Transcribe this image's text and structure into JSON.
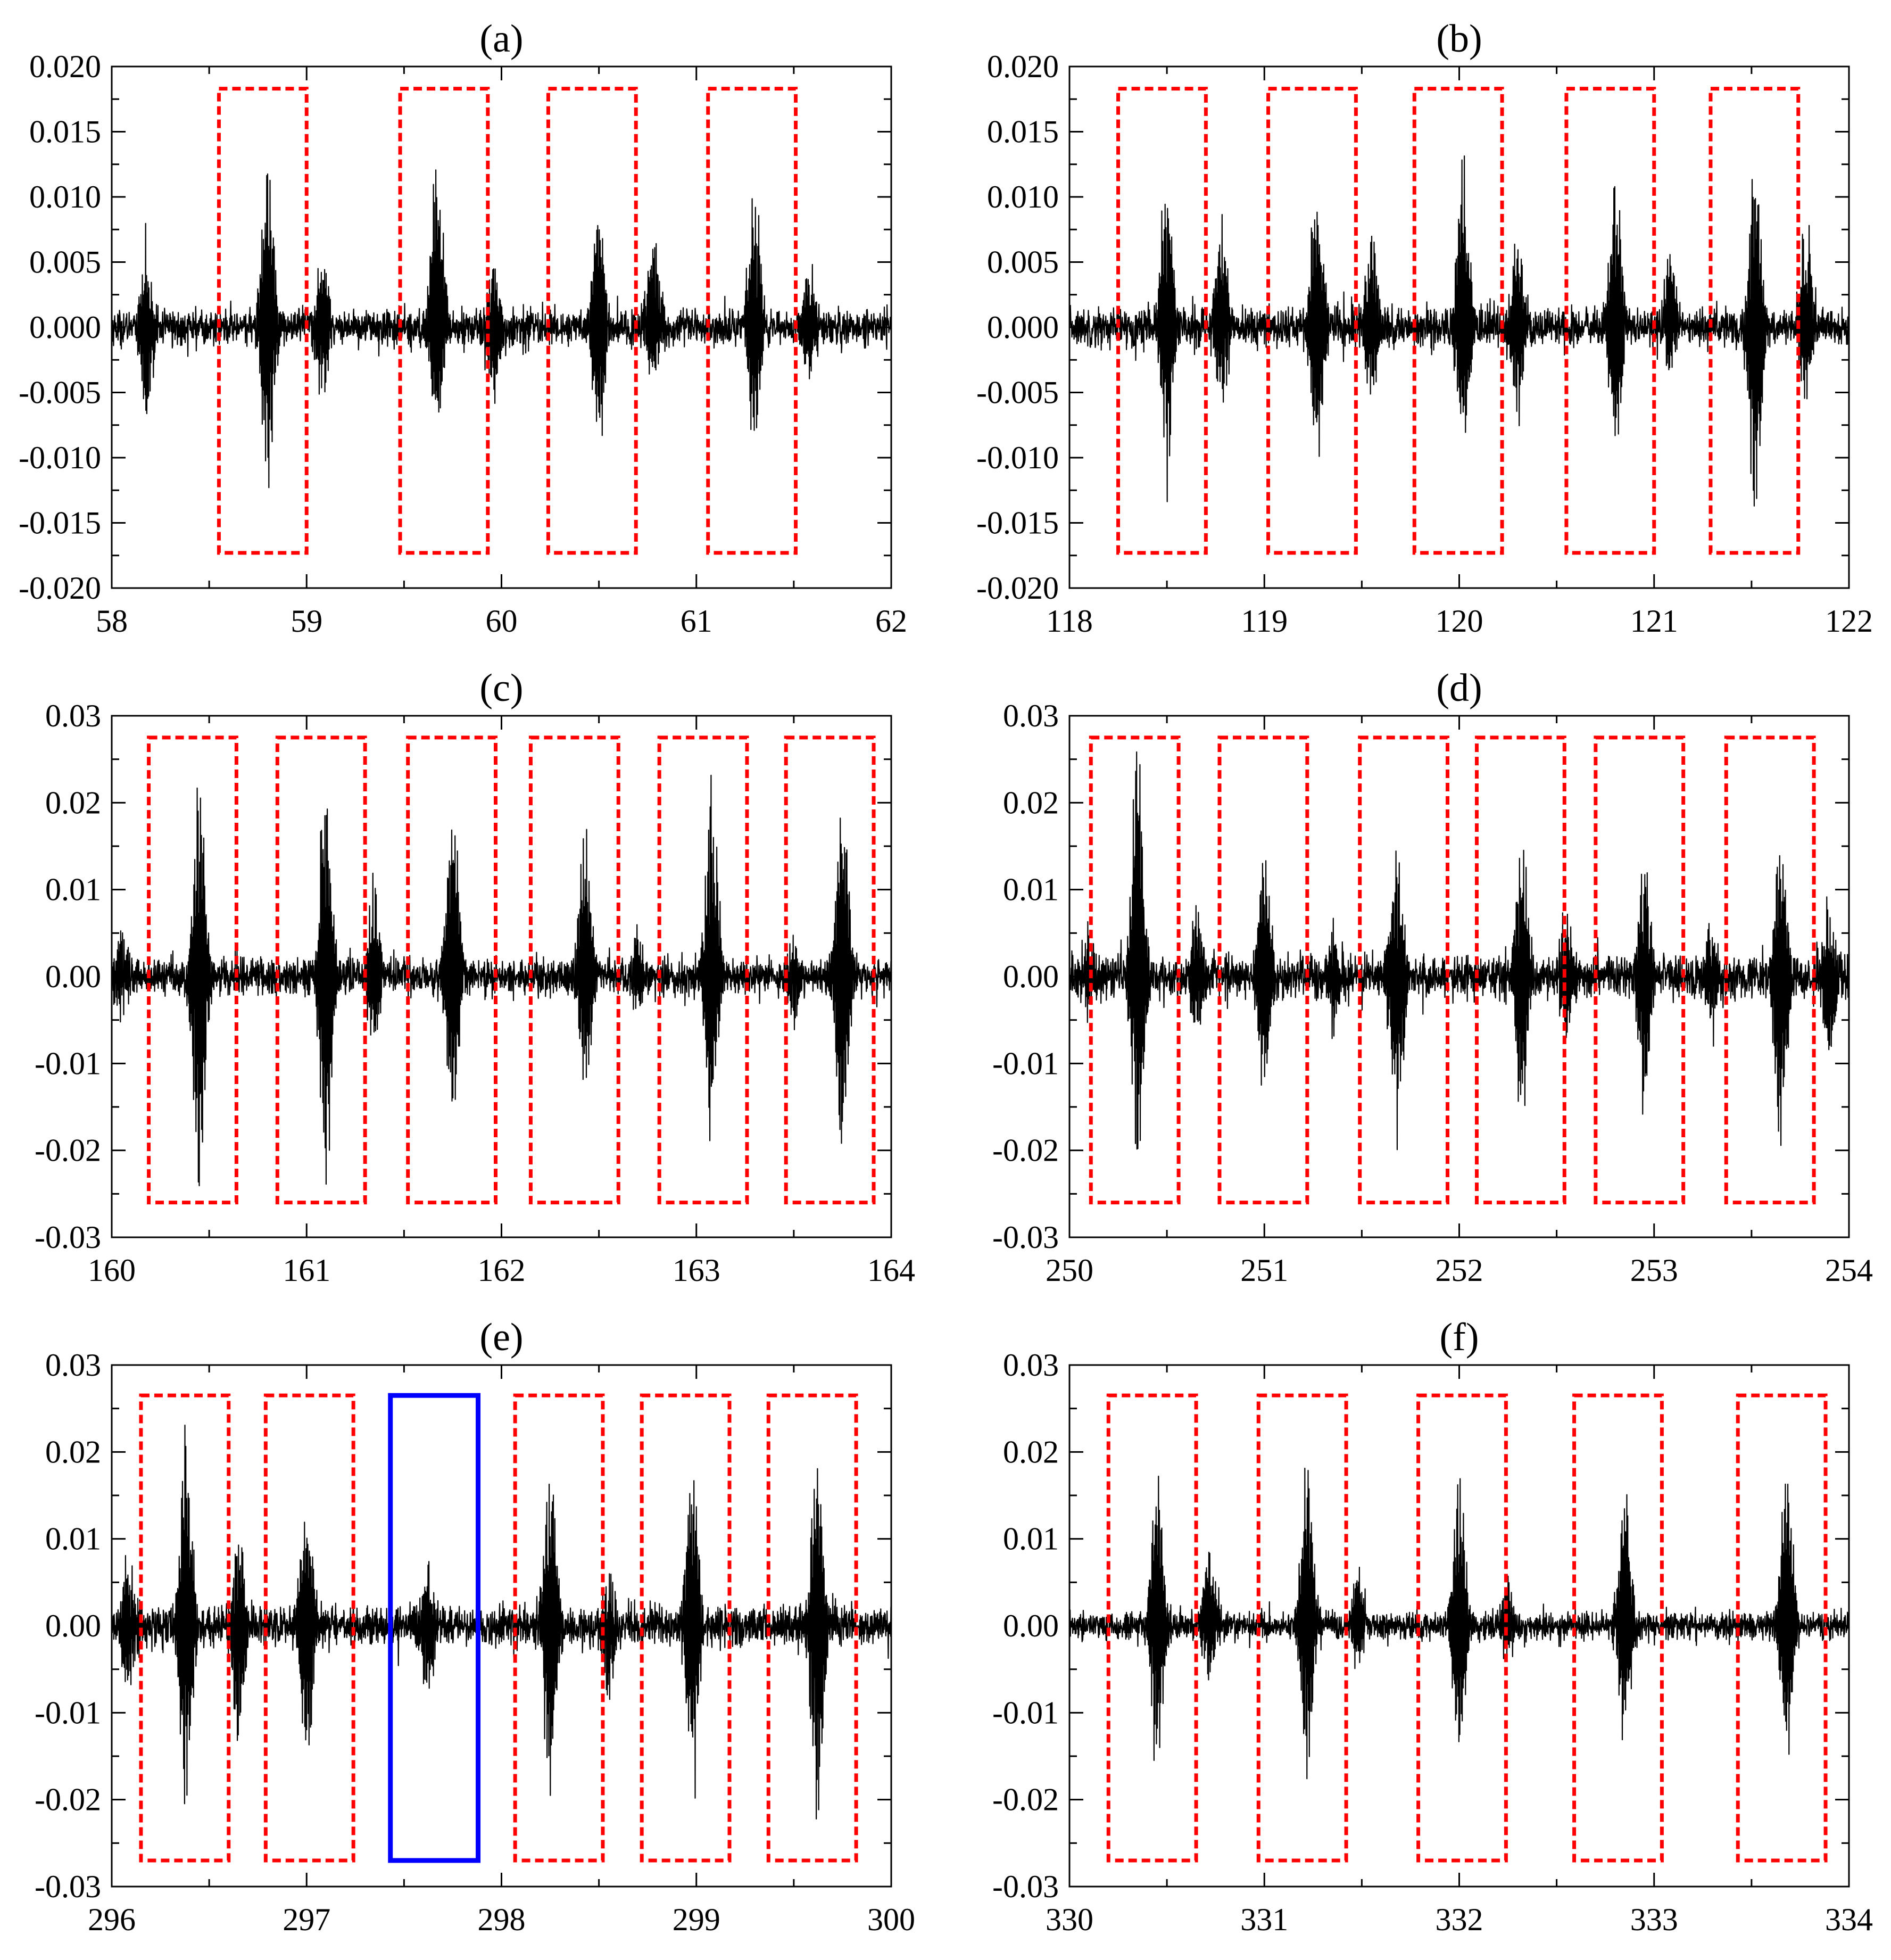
{
  "colors": {
    "signal": "#000000",
    "highlight_box": "#ff0000",
    "anomaly_box": "#0000ff",
    "axes": "#000000",
    "background": "#ffffff"
  },
  "chart_data": [
    {
      "type": "line",
      "title": "(a)",
      "xlabel": "",
      "ylabel": "",
      "xlim": [
        58,
        62
      ],
      "ylim": [
        -0.02,
        0.02
      ],
      "x_ticks": [
        58,
        59,
        60,
        61,
        62
      ],
      "x_tick_labels": [
        "58",
        "59",
        "60",
        "61",
        "62"
      ],
      "y_ticks": [
        -0.02,
        -0.015,
        -0.01,
        -0.005,
        0.0,
        0.005,
        0.01,
        0.015,
        0.02
      ],
      "y_tick_labels": [
        "-0.020",
        "-0.015",
        "-0.010",
        "-0.005",
        "0.000",
        "0.005",
        "0.010",
        "0.015",
        "0.020"
      ],
      "grid": false,
      "noise_amplitude": 0.0012,
      "bursts": [
        {
          "t": 58.18,
          "peak": 0.0065,
          "trough": -0.0082
        },
        {
          "t": 58.8,
          "peak": 0.0143,
          "trough": -0.0127
        },
        {
          "t": 59.08,
          "peak": 0.0063,
          "trough": -0.006
        },
        {
          "t": 59.67,
          "peak": 0.0153,
          "trough": -0.0092
        },
        {
          "t": 59.96,
          "peak": 0.0055,
          "trough": -0.007
        },
        {
          "t": 60.5,
          "peak": 0.0114,
          "trough": -0.0107
        },
        {
          "t": 60.78,
          "peak": 0.0083,
          "trough": -0.0048
        },
        {
          "t": 61.3,
          "peak": 0.0125,
          "trough": -0.0097
        },
        {
          "t": 61.58,
          "peak": 0.0055,
          "trough": -0.004
        }
      ],
      "highlight_regions": [
        {
          "x0": 58.55,
          "x1": 59.0,
          "y0": -0.0173,
          "y1": 0.0183,
          "color": "red",
          "style": "dashed"
        },
        {
          "x0": 59.48,
          "x1": 59.93,
          "y0": -0.0173,
          "y1": 0.0183,
          "color": "red",
          "style": "dashed"
        },
        {
          "x0": 60.24,
          "x1": 60.69,
          "y0": -0.0173,
          "y1": 0.0183,
          "color": "red",
          "style": "dashed"
        },
        {
          "x0": 61.06,
          "x1": 61.51,
          "y0": -0.0173,
          "y1": 0.0183,
          "color": "red",
          "style": "dashed"
        }
      ]
    },
    {
      "type": "line",
      "title": "(b)",
      "xlabel": "",
      "ylabel": "",
      "xlim": [
        118,
        122
      ],
      "ylim": [
        -0.02,
        0.02
      ],
      "x_ticks": [
        118,
        119,
        120,
        121,
        122
      ],
      "x_tick_labels": [
        "118",
        "119",
        "120",
        "121",
        "122"
      ],
      "y_ticks": [
        -0.02,
        -0.015,
        -0.01,
        -0.005,
        0.0,
        0.005,
        0.01,
        0.015,
        0.02
      ],
      "y_tick_labels": [
        "-0.020",
        "-0.015",
        "-0.010",
        "-0.005",
        "0.000",
        "0.005",
        "0.010",
        "0.015",
        "0.020"
      ],
      "grid": false,
      "noise_amplitude": 0.0013,
      "bursts": [
        {
          "t": 118.5,
          "peak": 0.0128,
          "trough": -0.0117
        },
        {
          "t": 118.78,
          "peak": 0.0092,
          "trough": -0.006
        },
        {
          "t": 119.27,
          "peak": 0.0118,
          "trough": -0.0111
        },
        {
          "t": 119.55,
          "peak": 0.0082,
          "trough": -0.006
        },
        {
          "t": 120.02,
          "peak": 0.0137,
          "trough": -0.0108
        },
        {
          "t": 120.3,
          "peak": 0.0075,
          "trough": -0.0068
        },
        {
          "t": 120.8,
          "peak": 0.0135,
          "trough": -0.0108
        },
        {
          "t": 121.08,
          "peak": 0.0065,
          "trough": -0.004
        },
        {
          "t": 121.52,
          "peak": 0.0138,
          "trough": -0.016
        },
        {
          "t": 121.78,
          "peak": 0.0085,
          "trough": -0.0055
        }
      ],
      "highlight_regions": [
        {
          "x0": 118.25,
          "x1": 118.7,
          "y0": -0.0173,
          "y1": 0.0183,
          "color": "red",
          "style": "dashed"
        },
        {
          "x0": 119.02,
          "x1": 119.47,
          "y0": -0.0173,
          "y1": 0.0183,
          "color": "red",
          "style": "dashed"
        },
        {
          "x0": 119.77,
          "x1": 120.22,
          "y0": -0.0173,
          "y1": 0.0183,
          "color": "red",
          "style": "dashed"
        },
        {
          "x0": 120.55,
          "x1": 121.0,
          "y0": -0.0173,
          "y1": 0.0183,
          "color": "red",
          "style": "dashed"
        },
        {
          "x0": 121.29,
          "x1": 121.74,
          "y0": -0.0173,
          "y1": 0.0183,
          "color": "red",
          "style": "dashed"
        }
      ]
    },
    {
      "type": "line",
      "title": "(c)",
      "xlabel": "",
      "ylabel": "",
      "xlim": [
        160,
        164
      ],
      "ylim": [
        -0.03,
        0.03
      ],
      "x_ticks": [
        160,
        161,
        162,
        163,
        164
      ],
      "x_tick_labels": [
        "160",
        "161",
        "162",
        "163",
        "164"
      ],
      "y_ticks": [
        -0.03,
        -0.02,
        -0.01,
        0.0,
        0.01,
        0.02,
        0.03
      ],
      "y_tick_labels": [
        "-0.03",
        "-0.02",
        "-0.01",
        "0.00",
        "0.01",
        "0.02",
        "0.03"
      ],
      "grid": false,
      "noise_amplitude": 0.0018,
      "bursts": [
        {
          "t": 160.05,
          "peak": 0.006,
          "trough": -0.005
        },
        {
          "t": 160.45,
          "peak": 0.0245,
          "trough": -0.028
        },
        {
          "t": 161.1,
          "peak": 0.025,
          "trough": -0.0255
        },
        {
          "t": 161.35,
          "peak": 0.0115,
          "trough": -0.0085
        },
        {
          "t": 161.75,
          "peak": 0.023,
          "trough": -0.0195
        },
        {
          "t": 162.43,
          "peak": 0.0185,
          "trough": -0.0155
        },
        {
          "t": 162.7,
          "peak": 0.006,
          "trough": -0.004
        },
        {
          "t": 163.08,
          "peak": 0.024,
          "trough": -0.02
        },
        {
          "t": 163.5,
          "peak": 0.004,
          "trough": -0.006
        },
        {
          "t": 163.75,
          "peak": 0.022,
          "trough": -0.0225
        }
      ],
      "highlight_regions": [
        {
          "x0": 160.19,
          "x1": 160.64,
          "y0": -0.026,
          "y1": 0.0275,
          "color": "red",
          "style": "dashed"
        },
        {
          "x0": 160.85,
          "x1": 161.3,
          "y0": -0.026,
          "y1": 0.0275,
          "color": "red",
          "style": "dashed"
        },
        {
          "x0": 161.52,
          "x1": 161.97,
          "y0": -0.026,
          "y1": 0.0275,
          "color": "red",
          "style": "dashed"
        },
        {
          "x0": 162.15,
          "x1": 162.6,
          "y0": -0.026,
          "y1": 0.0275,
          "color": "red",
          "style": "dashed"
        },
        {
          "x0": 162.81,
          "x1": 163.26,
          "y0": -0.026,
          "y1": 0.0275,
          "color": "red",
          "style": "dashed"
        },
        {
          "x0": 163.46,
          "x1": 163.91,
          "y0": -0.026,
          "y1": 0.0275,
          "color": "red",
          "style": "dashed"
        }
      ]
    },
    {
      "type": "line",
      "title": "(d)",
      "xlabel": "",
      "ylabel": "",
      "xlim": [
        250,
        254
      ],
      "ylim": [
        -0.03,
        0.03
      ],
      "x_ticks": [
        250,
        251,
        252,
        253,
        254
      ],
      "x_tick_labels": [
        "250",
        "251",
        "252",
        "253",
        "254"
      ],
      "y_ticks": [
        -0.03,
        -0.02,
        -0.01,
        0.0,
        0.01,
        0.02,
        0.03
      ],
      "y_tick_labels": [
        "-0.03",
        "-0.02",
        "-0.01",
        "0.00",
        "0.01",
        "0.02",
        "0.03"
      ],
      "grid": false,
      "noise_amplitude": 0.0022,
      "bursts": [
        {
          "t": 250.1,
          "peak": 0.005,
          "trough": -0.004
        },
        {
          "t": 250.35,
          "peak": 0.029,
          "trough": -0.025
        },
        {
          "t": 250.65,
          "peak": 0.008,
          "trough": -0.007
        },
        {
          "t": 251.0,
          "peak": 0.0165,
          "trough": -0.0155
        },
        {
          "t": 251.35,
          "peak": 0.006,
          "trough": -0.006
        },
        {
          "t": 251.68,
          "peak": 0.0145,
          "trough": -0.0205
        },
        {
          "t": 252.32,
          "peak": 0.017,
          "trough": -0.019
        },
        {
          "t": 252.55,
          "peak": 0.0075,
          "trough": -0.007
        },
        {
          "t": 252.95,
          "peak": 0.015,
          "trough": -0.0155
        },
        {
          "t": 253.3,
          "peak": 0.0065,
          "trough": -0.0065
        },
        {
          "t": 253.65,
          "peak": 0.0185,
          "trough": -0.022
        },
        {
          "t": 253.9,
          "peak": 0.0095,
          "trough": -0.011
        }
      ],
      "highlight_regions": [
        {
          "x0": 250.11,
          "x1": 250.56,
          "y0": -0.026,
          "y1": 0.0275,
          "color": "red",
          "style": "dashed"
        },
        {
          "x0": 250.77,
          "x1": 251.22,
          "y0": -0.026,
          "y1": 0.0275,
          "color": "red",
          "style": "dashed"
        },
        {
          "x0": 251.49,
          "x1": 251.94,
          "y0": -0.026,
          "y1": 0.0275,
          "color": "red",
          "style": "dashed"
        },
        {
          "x0": 252.09,
          "x1": 252.54,
          "y0": -0.026,
          "y1": 0.0275,
          "color": "red",
          "style": "dashed"
        },
        {
          "x0": 252.7,
          "x1": 253.15,
          "y0": -0.026,
          "y1": 0.0275,
          "color": "red",
          "style": "dashed"
        },
        {
          "x0": 253.37,
          "x1": 253.82,
          "y0": -0.026,
          "y1": 0.0275,
          "color": "red",
          "style": "dashed"
        }
      ]
    },
    {
      "type": "line",
      "title": "(e)",
      "xlabel": "",
      "ylabel": "",
      "xlim": [
        296,
        300
      ],
      "ylim": [
        -0.03,
        0.03
      ],
      "x_ticks": [
        296,
        297,
        298,
        299,
        300
      ],
      "x_tick_labels": [
        "296",
        "297",
        "298",
        "299",
        "300"
      ],
      "y_ticks": [
        -0.03,
        -0.02,
        -0.01,
        0.0,
        0.01,
        0.02,
        0.03
      ],
      "y_tick_labels": [
        "-0.03",
        "-0.02",
        "-0.01",
        "0.00",
        "0.01",
        "0.02",
        "0.03"
      ],
      "grid": false,
      "noise_amplitude": 0.002,
      "bursts": [
        {
          "t": 296.08,
          "peak": 0.008,
          "trough": -0.008
        },
        {
          "t": 296.38,
          "peak": 0.024,
          "trough": -0.023
        },
        {
          "t": 296.65,
          "peak": 0.0115,
          "trough": -0.0155
        },
        {
          "t": 297.0,
          "peak": 0.0175,
          "trough": -0.018
        },
        {
          "t": 297.62,
          "peak": 0.008,
          "trough": -0.0085
        },
        {
          "t": 298.25,
          "peak": 0.0205,
          "trough": -0.0205
        },
        {
          "t": 298.55,
          "peak": 0.006,
          "trough": -0.0095
        },
        {
          "t": 298.98,
          "peak": 0.0205,
          "trough": -0.021
        },
        {
          "t": 299.62,
          "peak": 0.021,
          "trough": -0.0265
        }
      ],
      "highlight_regions": [
        {
          "x0": 296.15,
          "x1": 296.6,
          "y0": -0.027,
          "y1": 0.0265,
          "color": "red",
          "style": "dashed"
        },
        {
          "x0": 296.79,
          "x1": 297.24,
          "y0": -0.027,
          "y1": 0.0265,
          "color": "red",
          "style": "dashed"
        },
        {
          "x0": 297.43,
          "x1": 297.88,
          "y0": -0.027,
          "y1": 0.0265,
          "color": "blue",
          "style": "solid"
        },
        {
          "x0": 298.07,
          "x1": 298.52,
          "y0": -0.027,
          "y1": 0.0265,
          "color": "red",
          "style": "dashed"
        },
        {
          "x0": 298.72,
          "x1": 299.17,
          "y0": -0.027,
          "y1": 0.0265,
          "color": "red",
          "style": "dashed"
        },
        {
          "x0": 299.37,
          "x1": 299.82,
          "y0": -0.027,
          "y1": 0.0265,
          "color": "red",
          "style": "dashed"
        }
      ]
    },
    {
      "type": "line",
      "title": "(f)",
      "xlabel": "",
      "ylabel": "",
      "xlim": [
        330,
        334
      ],
      "ylim": [
        -0.03,
        0.03
      ],
      "x_ticks": [
        330,
        331,
        332,
        333,
        334
      ],
      "x_tick_labels": [
        "330",
        "331",
        "332",
        "333",
        "334"
      ],
      "y_ticks": [
        -0.03,
        -0.02,
        -0.01,
        0.0,
        0.01,
        0.02,
        0.03
      ],
      "y_tick_labels": [
        "-0.03",
        "-0.02",
        "-0.01",
        "0.00",
        "0.01",
        "0.02",
        "0.03"
      ],
      "grid": false,
      "noise_amplitude": 0.0014,
      "bursts": [
        {
          "t": 330.45,
          "peak": 0.0205,
          "trough": -0.0175
        },
        {
          "t": 330.72,
          "peak": 0.0105,
          "trough": -0.0065
        },
        {
          "t": 331.22,
          "peak": 0.022,
          "trough": -0.0185
        },
        {
          "t": 331.48,
          "peak": 0.0085,
          "trough": -0.0055
        },
        {
          "t": 332.0,
          "peak": 0.019,
          "trough": -0.0155
        },
        {
          "t": 332.25,
          "peak": 0.006,
          "trough": -0.005
        },
        {
          "t": 332.85,
          "peak": 0.0175,
          "trough": -0.0145
        },
        {
          "t": 333.68,
          "peak": 0.0205,
          "trough": -0.016
        }
      ],
      "highlight_regions": [
        {
          "x0": 330.2,
          "x1": 330.65,
          "y0": -0.027,
          "y1": 0.0265,
          "color": "red",
          "style": "dashed"
        },
        {
          "x0": 330.97,
          "x1": 331.42,
          "y0": -0.027,
          "y1": 0.0265,
          "color": "red",
          "style": "dashed"
        },
        {
          "x0": 331.79,
          "x1": 332.24,
          "y0": -0.027,
          "y1": 0.0265,
          "color": "red",
          "style": "dashed"
        },
        {
          "x0": 332.59,
          "x1": 333.04,
          "y0": -0.027,
          "y1": 0.0265,
          "color": "red",
          "style": "dashed"
        },
        {
          "x0": 333.43,
          "x1": 333.88,
          "y0": -0.027,
          "y1": 0.0265,
          "color": "red",
          "style": "dashed"
        }
      ]
    }
  ]
}
